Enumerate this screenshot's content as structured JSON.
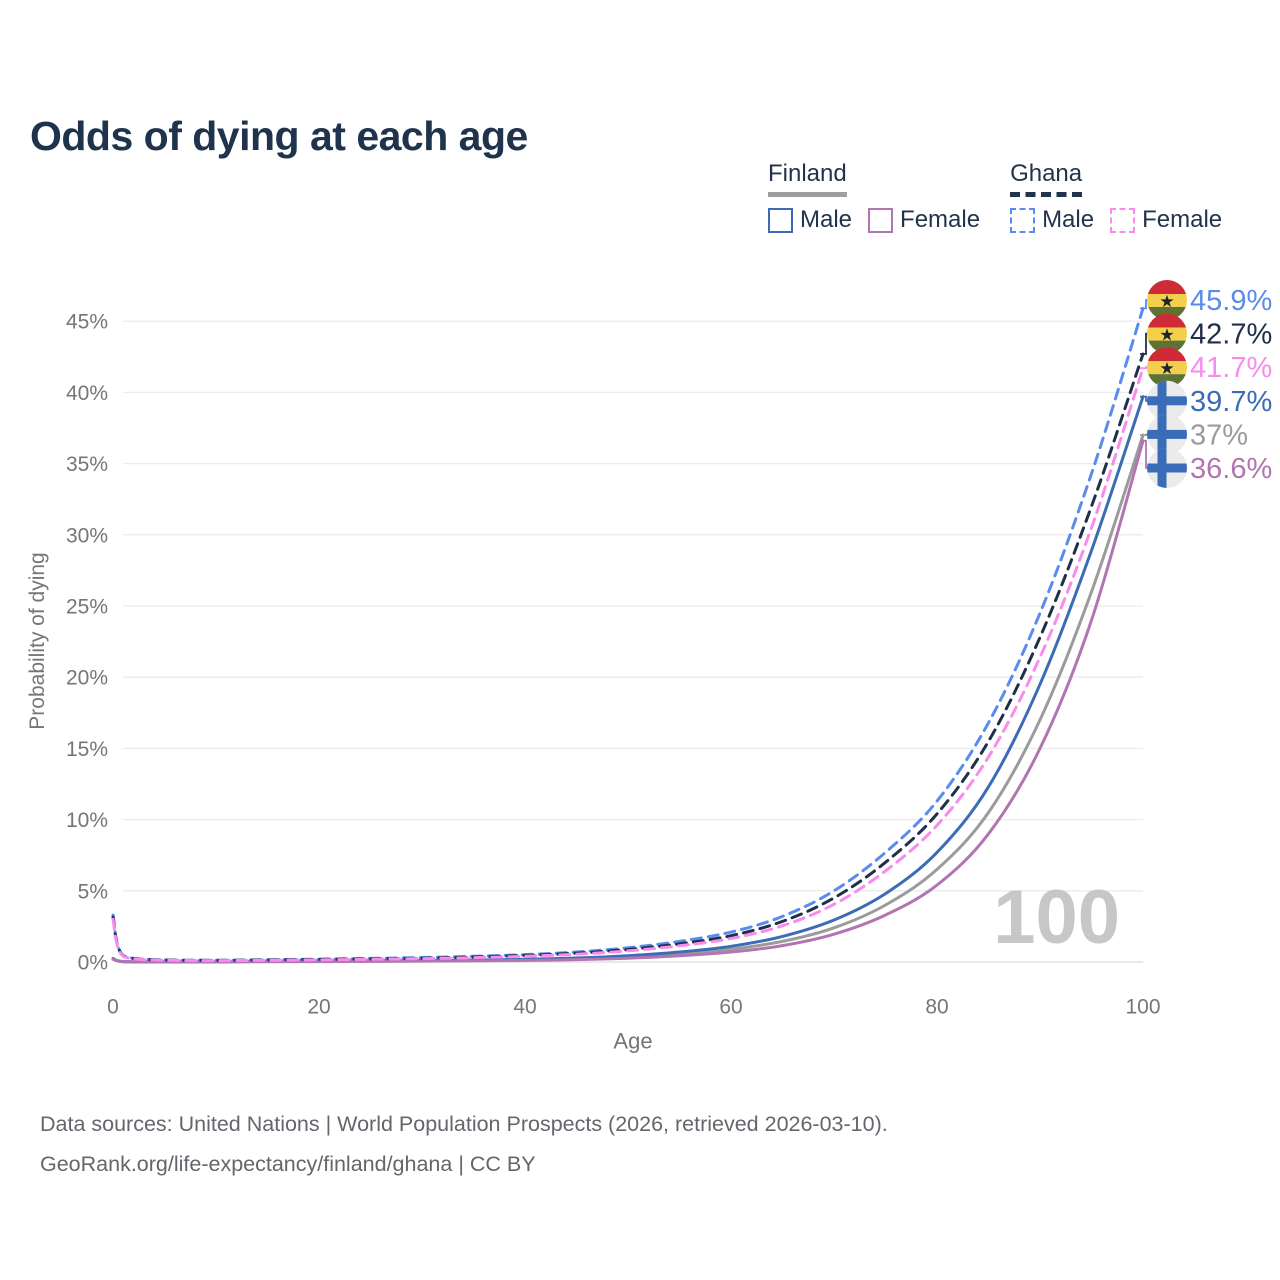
{
  "title": "Odds of dying at each age",
  "legend": {
    "groups": [
      {
        "name": "Finland",
        "line_style": "solid",
        "underline_color": "#9e9e9e",
        "items": [
          {
            "label": "Male",
            "color": "#3b6cb5"
          },
          {
            "label": "Female",
            "color": "#b175b2"
          }
        ]
      },
      {
        "name": "Ghana",
        "line_style": "dashed",
        "underline_color": "#22334d",
        "items": [
          {
            "label": "Male",
            "color": "#5a8bee"
          },
          {
            "label": "Female",
            "color": "#f78ced"
          }
        ]
      }
    ]
  },
  "footer": {
    "line1": "Data sources: United Nations | World Population Prospects (2026, retrieved 2026-03-10).",
    "line2": "GeoRank.org/life-expectancy/finland/ghana | CC BY"
  },
  "chart_data": {
    "type": "line",
    "title": "Odds of dying at each age",
    "xlabel": "Age",
    "ylabel": "Probability of dying",
    "xlim": [
      0,
      100
    ],
    "ylim": [
      0,
      47
    ],
    "x_ticks": [
      0,
      20,
      40,
      60,
      80,
      100
    ],
    "y_ticks": [
      0,
      5,
      10,
      15,
      20,
      25,
      30,
      35,
      40,
      45
    ],
    "y_tick_suffix": "%",
    "grid": "horizontal",
    "legend_position": "top-right",
    "hover_age_watermark": "100",
    "x": [
      0,
      1,
      5,
      10,
      15,
      20,
      25,
      30,
      35,
      40,
      45,
      50,
      55,
      60,
      65,
      70,
      75,
      80,
      85,
      90,
      95,
      100
    ],
    "series": [
      {
        "id": "finland-all",
        "name": "Finland (both sexes)",
        "country": "Finland",
        "color": "#9b9b9b",
        "dashed": false,
        "end_label": "37%",
        "end_value": 37,
        "values": [
          0.22,
          0.02,
          0.01,
          0.01,
          0.04,
          0.06,
          0.07,
          0.09,
          0.11,
          0.15,
          0.22,
          0.35,
          0.56,
          0.9,
          1.45,
          2.4,
          4.0,
          6.5,
          10.5,
          17.0,
          26.0,
          37.0
        ]
      },
      {
        "id": "finland-male",
        "name": "Finland Male",
        "country": "Finland",
        "color": "#3b6cb5",
        "dashed": false,
        "end_label": "39.7%",
        "end_value": 39.7,
        "values": [
          0.25,
          0.03,
          0.01,
          0.01,
          0.05,
          0.08,
          0.09,
          0.11,
          0.14,
          0.19,
          0.28,
          0.44,
          0.7,
          1.1,
          1.8,
          2.95,
          4.8,
          7.7,
          12.3,
          19.5,
          28.9,
          39.7
        ]
      },
      {
        "id": "finland-female",
        "name": "Finland Female",
        "country": "Finland",
        "color": "#b175b2",
        "dashed": false,
        "end_label": "36.6%",
        "end_value": 36.6,
        "values": [
          0.2,
          0.02,
          0.01,
          0.01,
          0.02,
          0.03,
          0.04,
          0.06,
          0.08,
          0.11,
          0.17,
          0.27,
          0.44,
          0.7,
          1.15,
          1.95,
          3.3,
          5.4,
          9.0,
          15.0,
          24.0,
          36.6
        ]
      },
      {
        "id": "ghana-male",
        "name": "Ghana Male",
        "country": "Ghana",
        "color": "#5a8bee",
        "dashed": true,
        "end_label": "45.9%",
        "end_value": 45.9,
        "values": [
          3.3,
          0.45,
          0.15,
          0.12,
          0.16,
          0.2,
          0.25,
          0.31,
          0.4,
          0.52,
          0.7,
          1.0,
          1.45,
          2.1,
          3.2,
          5.0,
          7.7,
          11.3,
          16.8,
          24.5,
          34.3,
          45.9
        ]
      },
      {
        "id": "ghana-all",
        "name": "Ghana (both sexes)",
        "country": "Ghana",
        "color": "#20304a",
        "dashed": true,
        "end_label": "42.7%",
        "end_value": 42.7,
        "values": [
          3.15,
          0.42,
          0.13,
          0.11,
          0.14,
          0.18,
          0.22,
          0.27,
          0.35,
          0.46,
          0.62,
          0.88,
          1.28,
          1.85,
          2.85,
          4.5,
          7.0,
          10.4,
          15.5,
          22.8,
          32.0,
          42.7
        ]
      },
      {
        "id": "ghana-female",
        "name": "Ghana Female",
        "country": "Ghana",
        "color": "#f78ced",
        "dashed": true,
        "end_label": "41.7%",
        "end_value": 41.7,
        "values": [
          3.0,
          0.4,
          0.12,
          0.1,
          0.12,
          0.15,
          0.19,
          0.24,
          0.3,
          0.4,
          0.55,
          0.78,
          1.14,
          1.65,
          2.55,
          4.05,
          6.4,
          9.6,
          14.4,
          21.4,
          30.5,
          41.7
        ]
      }
    ],
    "flags": {
      "Ghana": {
        "red": "#ce2b37",
        "yellow": "#f2d04c",
        "green": "#5e7233",
        "star": "#1c2430"
      },
      "Finland": {
        "background": "#ebebeb",
        "cross": "#3a6db8"
      }
    },
    "colors": {
      "grid": "#ececec",
      "baseline": "#dcdcdc",
      "tick_text": "#767676",
      "watermark": "#c7c7c7"
    }
  }
}
